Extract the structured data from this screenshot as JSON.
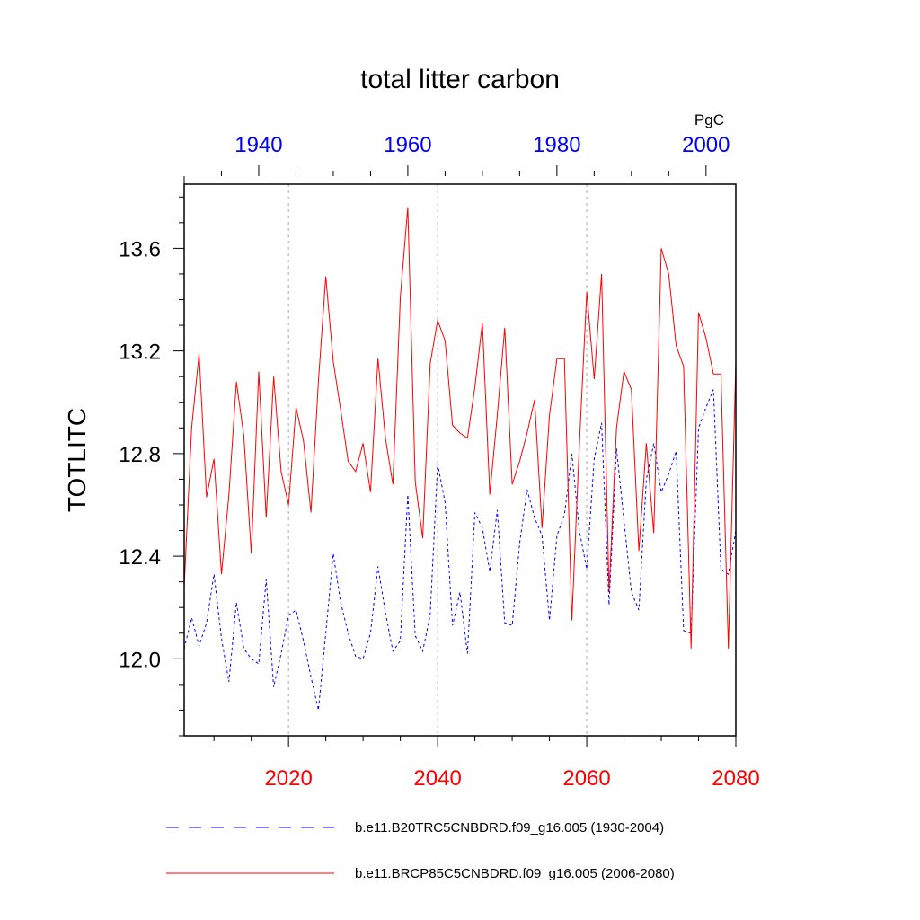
{
  "chart_data": {
    "type": "line",
    "title": "total litter carbon",
    "ylabel": "TOTLITC",
    "units": "PgC",
    "ylim": [
      11.7,
      13.85
    ],
    "yticks": [
      "12.0",
      "12.4",
      "12.8",
      "13.2",
      "13.6"
    ],
    "ytick_values": [
      12.0,
      12.4,
      12.8,
      13.2,
      13.6
    ],
    "x_bottom": {
      "range": [
        2006,
        2080
      ],
      "ticks": [
        "2020",
        "2040",
        "2060",
        "2080"
      ],
      "tick_values": [
        2020,
        2040,
        2060,
        2080
      ],
      "color": "#ff0000"
    },
    "x_top": {
      "range": [
        1930,
        2004
      ],
      "ticks": [
        "1940",
        "1960",
        "1980",
        "2000"
      ],
      "tick_values": [
        1940,
        1960,
        1980,
        2000
      ],
      "color": "#0000ff"
    },
    "grid": "vertical dotted at 2020, 2040, 2060",
    "series": [
      {
        "name": "b.e11.B20TRC5CNBDRD.f09_g16.005 (1930-2004)",
        "axis": "top",
        "color": "#0000ff",
        "dash": "dashed",
        "x_start": 1930,
        "values": [
          12.04,
          12.16,
          12.05,
          12.14,
          12.33,
          12.08,
          11.91,
          12.22,
          12.04,
          12.0,
          11.98,
          12.31,
          11.89,
          12.02,
          12.17,
          12.19,
          12.07,
          11.93,
          11.8,
          12.1,
          12.41,
          12.22,
          12.1,
          12.01,
          12.0,
          12.1,
          12.36,
          12.18,
          12.03,
          12.07,
          12.64,
          12.09,
          12.03,
          12.17,
          12.76,
          12.61,
          12.13,
          12.26,
          12.02,
          12.57,
          12.51,
          12.34,
          12.58,
          12.14,
          12.13,
          12.45,
          12.66,
          12.55,
          12.48,
          12.15,
          12.48,
          12.56,
          12.8,
          12.5,
          12.35,
          12.78,
          12.92,
          12.21,
          12.82,
          12.54,
          12.26,
          12.19,
          12.7,
          12.84,
          12.65,
          12.72,
          12.81,
          12.11,
          12.1,
          12.9,
          12.98,
          13.05,
          12.35,
          12.33,
          12.5
        ]
      },
      {
        "name": "b.e11.BRCP85C5CNBDRD.f09_g16.005 (2006-2080)",
        "axis": "bottom",
        "color": "#ff0000",
        "dash": "solid",
        "x_start": 2006,
        "values": [
          12.28,
          12.9,
          13.19,
          12.63,
          12.78,
          12.33,
          12.64,
          13.08,
          12.87,
          12.41,
          13.12,
          12.55,
          13.1,
          12.73,
          12.6,
          12.98,
          12.85,
          12.57,
          13.08,
          13.49,
          13.16,
          12.97,
          12.77,
          12.73,
          12.84,
          12.65,
          13.17,
          12.86,
          12.68,
          13.41,
          13.76,
          12.69,
          12.47,
          13.15,
          13.32,
          13.24,
          12.91,
          12.88,
          12.86,
          13.06,
          13.31,
          12.64,
          12.95,
          13.29,
          12.68,
          12.77,
          12.88,
          13.01,
          12.51,
          12.95,
          13.17,
          13.17,
          12.15,
          12.83,
          13.43,
          13.09,
          13.5,
          12.26,
          12.9,
          13.12,
          13.05,
          12.42,
          12.84,
          12.49,
          13.6,
          13.5,
          13.22,
          13.14,
          12.04,
          13.35,
          13.25,
          13.11,
          13.11,
          12.04,
          13.16
        ]
      }
    ],
    "legend": {
      "placement": "bottom",
      "entries": [
        "b.e11.B20TRC5CNBDRD.f09_g16.005 (1930-2004)",
        "b.e11.BRCP85C5CNBDRD.f09_g16.005 (2006-2080)"
      ]
    }
  }
}
